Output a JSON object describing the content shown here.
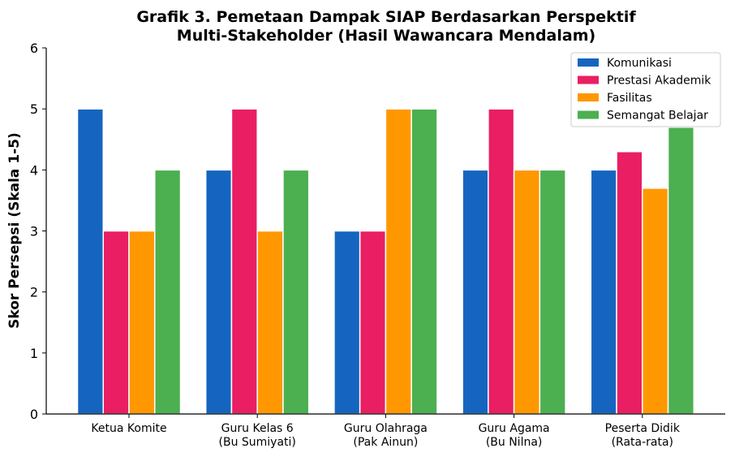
{
  "chart_data": {
    "type": "bar",
    "title_lines": [
      "Grafik 3. Pemetaan Dampak SIAP Berdasarkan Perspektif",
      "Multi-Stakeholder (Hasil Wawancara Mendalam)"
    ],
    "xlabel": "",
    "ylabel": "Skor Persepsi (Skala 1-5)",
    "ylim": [
      0,
      6
    ],
    "yticks": [
      "0",
      "1",
      "2",
      "3",
      "4",
      "5",
      "6"
    ],
    "categories": [
      [
        "Ketua Komite"
      ],
      [
        "Guru Kelas 6",
        "(Bu Sumiyati)"
      ],
      [
        "Guru Olahraga",
        "(Pak Ainun)"
      ],
      [
        "Guru Agama",
        "(Bu Nilna)"
      ],
      [
        "Peserta Didik",
        "(Rata-rata)"
      ]
    ],
    "series": [
      {
        "name": "Komunikasi",
        "color": "#1565C0",
        "values": [
          5,
          4,
          3,
          4,
          4
        ]
      },
      {
        "name": "Prestasi Akademik",
        "color": "#E91E63",
        "values": [
          3,
          5,
          3,
          5,
          4.3
        ]
      },
      {
        "name": "Fasilitas",
        "color": "#FF9800",
        "values": [
          3,
          3,
          5,
          4,
          3.7
        ]
      },
      {
        "name": "Semangat Belajar",
        "color": "#4CAF50",
        "values": [
          4,
          4,
          5,
          4,
          4.7
        ]
      }
    ],
    "grid": false,
    "legend": "top-right"
  }
}
